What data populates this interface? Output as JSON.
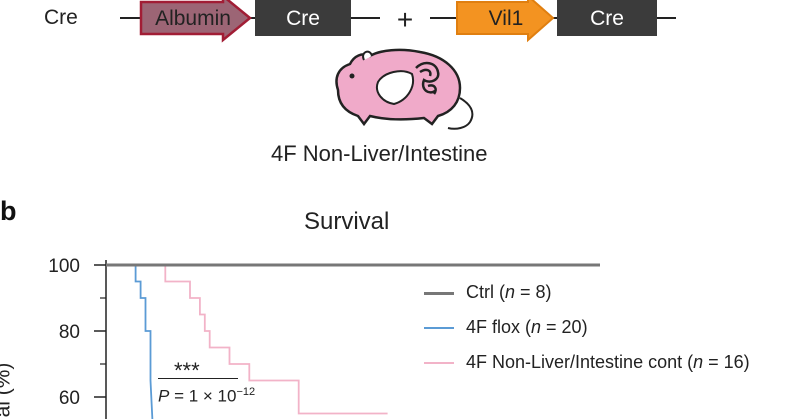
{
  "panel_a": {
    "row_label": "Cre",
    "construct_left": {
      "promoter": "Albumin",
      "gene": "Cre",
      "promoter_color": "#9c6575",
      "promoter_border": "#a11d35"
    },
    "plus": "+",
    "construct_right": {
      "promoter": "Vil1",
      "gene": "Cre",
      "promoter_color": "#f39321",
      "promoter_border": "#e07f10"
    },
    "gene_box_color": "#3b3b3b",
    "mouse_color": "#f0aac9",
    "caption": "4F Non-Liver/Intestine"
  },
  "panel_b": {
    "panel_letter": "b",
    "legend": [
      {
        "label_prefix": "Ctrl (",
        "n_symbol": "n",
        "label_suffix": " = 8)",
        "color": "#777777"
      },
      {
        "label_prefix": "4F flox (",
        "n_symbol": "n",
        "label_suffix": " = 20)",
        "color": "#5b9bd5"
      },
      {
        "label_prefix": "4F Non-Liver/Intestine cont (",
        "n_symbol": "n",
        "label_suffix": " = 16)",
        "color": "#f2b3c8"
      }
    ],
    "significance": {
      "stars": "***",
      "p_prefix": "P",
      "p_text": " = 1 × 10",
      "p_exponent": "−12"
    },
    "y_label": "al (%)"
  },
  "chart_data": {
    "type": "line",
    "title": "Survival",
    "ylabel": "al (%)",
    "ylim": [
      50,
      100
    ],
    "xlim": [
      0,
      100
    ],
    "yticks": [
      100,
      80,
      60
    ],
    "series": [
      {
        "name": "Ctrl (n = 8)",
        "color": "#777777",
        "x": [
          0,
          100
        ],
        "y": [
          100,
          100
        ]
      },
      {
        "name": "4F flox (n = 20)",
        "color": "#5b9bd5",
        "x": [
          0,
          6,
          6,
          7,
          7,
          8,
          8,
          9,
          9,
          9.5
        ],
        "y": [
          100,
          100,
          95,
          95,
          90,
          90,
          80,
          80,
          65,
          50
        ]
      },
      {
        "name": "4F Non-Liver/Intestine cont (n = 16)",
        "color": "#f2b3c8",
        "x": [
          0,
          12,
          12,
          17,
          17,
          19,
          19,
          20,
          20,
          21,
          21,
          25,
          25,
          29,
          29,
          39,
          39,
          57
        ],
        "y": [
          100,
          100,
          95,
          95,
          90,
          90,
          85,
          85,
          80,
          80,
          75,
          75,
          70,
          70,
          65,
          65,
          55,
          55
        ]
      }
    ]
  }
}
